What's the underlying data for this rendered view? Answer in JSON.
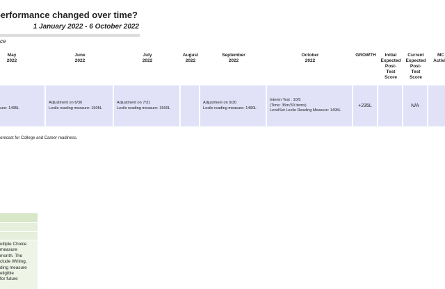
{
  "header": {
    "title": "re performance changed over time?",
    "subtitle": "1 January 2022 - 6 October 2022",
    "section": "ce"
  },
  "table": {
    "columns": [
      {
        "lines": [
          "May",
          "2022"
        ]
      },
      {
        "lines": [
          "June",
          "2022"
        ]
      },
      {
        "lines": [
          "July",
          "2022"
        ]
      },
      {
        "lines": [
          "August",
          "2022"
        ]
      },
      {
        "lines": [
          "September",
          "2022"
        ]
      },
      {
        "lines": [
          "October",
          "2022"
        ]
      },
      {
        "lines": [
          "GROWTH"
        ]
      },
      {
        "lines": [
          "Initial",
          "Expected",
          "Post-",
          "Test",
          "Score"
        ]
      },
      {
        "lines": [
          "Current",
          "Expected",
          "Post-",
          "Test",
          "Score"
        ]
      },
      {
        "lines": [
          "MC",
          "Activiti"
        ]
      }
    ],
    "row": [
      [
        "ent on 5/31",
        "ading measure: 1495L"
      ],
      [
        "Adjustment on 6/30",
        "Lexile reading measure: 1505L"
      ],
      [
        "Adjustment on 7/31",
        "Lexile reading measure: 1500L"
      ],
      [],
      [
        "Adjustment on 9/30",
        "Lexile reading measure: 1490L"
      ],
      [
        "Interim Test : 10/5",
        "(Time: 35m/30 items)",
        "LevelSet Lexile Reading Measure: 1495L"
      ],
      [
        "+235L"
      ],
      [],
      [
        "N/A"
      ],
      []
    ]
  },
  "footnote": "orecast for College and Career readiness.",
  "side_panel": {
    "lines": [
      "ultiple Choice",
      "measure",
      "month. The",
      "clude Writing,",
      "ding measure",
      "eligible",
      "for future"
    ]
  }
}
